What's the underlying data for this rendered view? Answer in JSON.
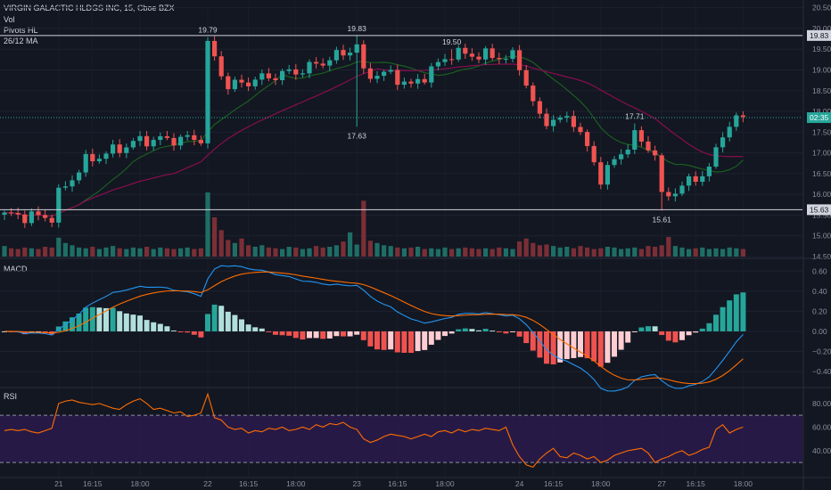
{
  "legend": {
    "title": "VIRGIN GALACTIC HLDGS INC, 15, Cboe BZX",
    "vol": "Vol",
    "pivots": "Pivots HL",
    "ma": "26/12 MA",
    "macd": "MACD",
    "rsi": "RSI"
  },
  "colors": {
    "background": "#131722",
    "up": "#26a69a",
    "down": "#ef5350",
    "macd_line": "#2196f3",
    "signal_line": "#ff6d00",
    "ma_fast": "#1b5e20",
    "ma_slow": "#880e4f",
    "rsi_line": "#ff6d00",
    "rsi_band": "#2a1a4a"
  },
  "chart_data": [
    {
      "type": "candlestick",
      "ylim": [
        14.5,
        20.6
      ],
      "yticks": [
        "20.50",
        "20.00",
        "19.50",
        "19.00",
        "18.50",
        "18.00",
        "17.50",
        "17.00",
        "16.50",
        "16.00",
        "15.50",
        "15.00",
        "14.50"
      ],
      "xticks": [
        "21",
        "16:15",
        "18:00",
        "22",
        "16:15",
        "18:00",
        "23",
        "16:15",
        "18:00",
        "24",
        "16:15",
        "18:00",
        "27",
        "16:15",
        "18:00"
      ],
      "pivot_labels": [
        {
          "text": "19.79",
          "price": 19.79,
          "bar": 30,
          "position": "above"
        },
        {
          "text": "19.83",
          "price": 19.83,
          "bar": 52,
          "position": "above"
        },
        {
          "text": "19.50",
          "price": 19.5,
          "bar": 66,
          "position": "above"
        },
        {
          "text": "17.63",
          "price": 17.63,
          "bar": 52,
          "position": "below"
        },
        {
          "text": "17.71",
          "price": 17.71,
          "bar": 93,
          "position": "above"
        },
        {
          "text": "15.61",
          "price": 15.61,
          "bar": 97,
          "position": "below"
        }
      ],
      "price_lines": [
        19.83,
        15.63
      ],
      "last_price_label": "02:35",
      "last_price": 17.85,
      "axis_tags": [
        {
          "text": "19.83",
          "price": 19.83
        },
        {
          "text": "15.63",
          "price": 15.63
        }
      ]
    },
    {
      "type": "bar",
      "name": "Vol",
      "note": "relative volume per candle",
      "values": [
        1.4,
        1.1,
        1.0,
        1.2,
        1.1,
        1.0,
        1.3,
        1.2,
        2.5,
        1.8,
        1.5,
        1.2,
        1.1,
        1.3,
        1.0,
        1.2,
        1.4,
        1.1,
        1.0,
        1.2,
        1.1,
        1.3,
        1.0,
        1.2,
        1.1,
        1.0,
        1.1,
        1.2,
        1.0,
        1.1,
        8.5,
        5.2,
        3.5,
        2.2,
        1.8,
        2.4,
        1.5,
        1.3,
        1.5,
        1.2,
        1.1,
        1.0,
        1.3,
        1.2,
        1.0,
        1.1,
        1.4,
        1.2,
        1.3,
        1.5,
        2.0,
        3.2,
        1.6,
        7.4,
        2.1,
        1.8,
        1.5,
        1.4,
        1.2,
        1.1,
        1.2,
        1.3,
        1.0,
        1.1,
        1.0,
        1.2,
        1.0,
        1.1,
        1.2,
        1.1,
        1.0,
        1.1,
        1.0,
        1.2,
        1.1,
        1.0,
        2.0,
        2.4,
        1.8,
        1.5,
        1.6,
        1.4,
        1.2,
        1.3,
        1.1,
        1.4,
        1.2,
        1.0,
        1.1,
        1.3,
        1.2,
        1.0,
        1.1,
        1.2,
        1.0,
        1.4,
        1.3,
        1.5,
        2.6,
        1.4,
        1.2,
        1.0,
        1.1,
        1.2,
        1.0,
        1.1,
        1.0,
        1.2,
        1.1,
        1.0,
        1.0
      ]
    },
    {
      "type": "macd",
      "name": "MACD",
      "ylim": [
        -0.55,
        0.7
      ],
      "yticks": [
        "0.60",
        "0.40",
        "0.20",
        "0.00",
        "−0.20",
        "−0.40"
      ]
    },
    {
      "type": "line",
      "name": "RSI",
      "ylim": [
        18,
        92
      ],
      "yticks": [
        "80.00",
        "60.00",
        "40.00"
      ],
      "bands": [
        70,
        30
      ],
      "values": [
        57,
        58,
        57,
        58,
        56,
        55,
        57,
        59,
        80,
        82,
        83,
        81,
        80,
        79,
        80,
        78,
        76,
        75,
        79,
        82,
        84,
        80,
        75,
        76,
        74,
        72,
        73,
        69,
        70,
        72,
        88,
        68,
        66,
        60,
        58,
        59,
        55,
        57,
        56,
        59,
        58,
        60,
        57,
        58,
        60,
        58,
        62,
        60,
        63,
        62,
        64,
        60,
        58,
        50,
        47,
        49,
        52,
        54,
        53,
        52,
        50,
        52,
        54,
        52,
        56,
        57,
        55,
        58,
        56,
        58,
        57,
        59,
        58,
        57,
        60,
        45,
        35,
        28,
        26,
        33,
        38,
        42,
        35,
        34,
        38,
        36,
        33,
        35,
        30,
        32,
        36,
        38,
        40,
        41,
        42,
        38,
        30,
        33,
        35,
        38,
        40,
        36,
        38,
        41,
        43,
        58,
        62,
        55,
        58,
        60,
        57
      ]
    }
  ]
}
